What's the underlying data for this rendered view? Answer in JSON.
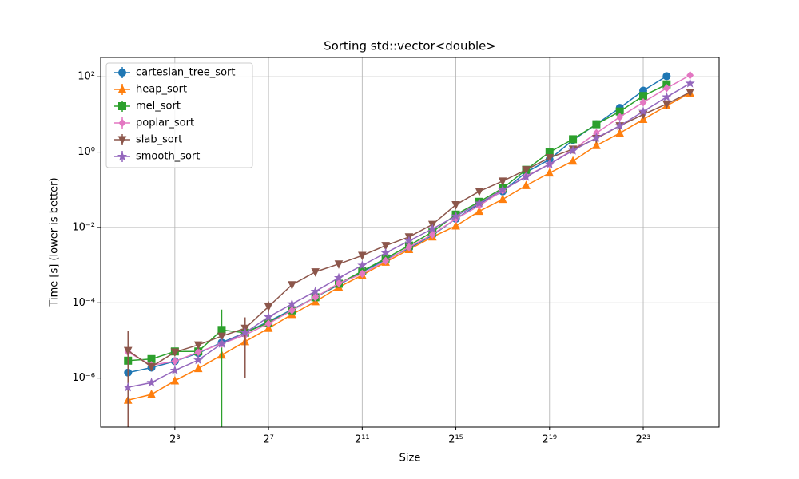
{
  "chart_data": {
    "type": "line",
    "title": "Sorting std::vector<double>",
    "x_label": "Size",
    "y_label": "Time [s] (lower is better)",
    "x_scale": "log",
    "y_scale": "log",
    "grid": true,
    "legend_position": "upper left",
    "xlim": [
      0.89,
      79300000
    ],
    "ylim": [
      5e-08,
      326
    ],
    "xticks": [
      {
        "value": 8,
        "label": "2³"
      },
      {
        "value": 128,
        "label": "2⁷"
      },
      {
        "value": 2048,
        "label": "2¹¹"
      },
      {
        "value": 32768,
        "label": "2¹⁵"
      },
      {
        "value": 524288,
        "label": "2¹⁹"
      },
      {
        "value": 8388608,
        "label": "2²³"
      }
    ],
    "yticks": [
      {
        "value": 1e-06,
        "label": "10⁻⁶"
      },
      {
        "value": 0.0001,
        "label": "10⁻⁴"
      },
      {
        "value": 0.01,
        "label": "10⁻²"
      },
      {
        "value": 1,
        "label": "10⁰"
      },
      {
        "value": 100,
        "label": "10²"
      }
    ],
    "x": [
      2,
      4,
      8,
      16,
      32,
      64,
      128,
      256,
      512,
      1024,
      2048,
      4096,
      8192,
      16384,
      32768,
      65536,
      131072,
      262144,
      524288,
      1048576,
      2097152,
      4194304,
      8388608,
      16777216,
      33554432
    ],
    "series": [
      {
        "name": "cartesian_tree_sort",
        "color": "#1f77b4",
        "marker": "circle",
        "values": [
          1.4e-06,
          1.9e-06,
          2.8e-06,
          4.6e-06,
          8.8e-06,
          1.6e-05,
          3.2e-05,
          6.6e-05,
          0.00014,
          0.0003,
          0.00066,
          0.0014,
          0.0028,
          0.0062,
          0.017,
          0.042,
          0.091,
          0.29,
          0.64,
          2.1,
          5.5,
          15,
          43,
          104,
          null
        ]
      },
      {
        "name": "heap_sort",
        "color": "#ff7f0e",
        "marker": "triangle-up",
        "values": [
          2.6e-07,
          3.7e-07,
          8.5e-07,
          1.8e-06,
          4.1e-06,
          9.3e-06,
          2.1e-05,
          4.9e-05,
          0.000107,
          0.00026,
          0.00054,
          0.0012,
          0.0026,
          0.0056,
          0.011,
          0.027,
          0.056,
          0.13,
          0.28,
          0.58,
          1.5,
          3.2,
          7.4,
          17,
          37
        ]
      },
      {
        "name": "mel_sort",
        "color": "#2ca02c",
        "marker": "square",
        "values": [
          2.9e-06,
          3.2e-06,
          5.1e-06,
          5.1e-06,
          1.9e-05,
          1.6e-05,
          3e-05,
          6.3e-05,
          0.00014,
          0.00032,
          0.00069,
          0.0015,
          0.0033,
          0.0076,
          0.022,
          0.048,
          0.11,
          0.34,
          1.0,
          2.2,
          5.5,
          12,
          31,
          63,
          null
        ],
        "errors": [
          null,
          null,
          null,
          null,
          4.7e-05,
          null,
          null,
          null,
          null,
          null,
          null,
          null,
          null,
          null,
          null,
          null,
          null,
          null,
          null,
          null,
          null,
          null,
          null,
          null,
          null
        ]
      },
      {
        "name": "poplar_sort",
        "color": "#e377c2",
        "marker": "diamond",
        "values": [
          4.9e-06,
          2.2e-06,
          2.8e-06,
          4.9e-06,
          8.2e-06,
          1.4e-05,
          2.8e-05,
          6.3e-05,
          0.00014,
          0.00033,
          0.00059,
          0.0013,
          0.003,
          0.0065,
          0.017,
          0.038,
          0.096,
          0.23,
          0.48,
          1.16,
          3.2,
          8.6,
          21,
          50,
          110
        ]
      },
      {
        "name": "slab_sort",
        "color": "#8c564b",
        "marker": "triangle-down",
        "values": [
          5.4e-06,
          2e-06,
          4.9e-06,
          7.6e-06,
          1.3e-05,
          2.1e-05,
          7.9e-05,
          0.0003,
          0.00066,
          0.00107,
          0.0018,
          0.0033,
          0.0056,
          0.012,
          0.04,
          0.091,
          0.17,
          0.34,
          0.71,
          1.2,
          2.3,
          5.0,
          10,
          19,
          39
        ],
        "errors": [
          1.3e-05,
          null,
          null,
          null,
          null,
          2e-05,
          3e-05,
          null,
          null,
          null,
          null,
          null,
          null,
          null,
          null,
          null,
          null,
          null,
          null,
          null,
          null,
          null,
          null,
          null,
          null
        ]
      },
      {
        "name": "smooth_sort",
        "color": "#9467bd",
        "marker": "star",
        "values": [
          5.7e-07,
          7.6e-07,
          1.6e-06,
          3e-06,
          8.2e-06,
          1.6e-05,
          4.2e-05,
          9.3e-05,
          0.0002,
          0.00046,
          0.00098,
          0.0021,
          0.0044,
          0.0092,
          0.02,
          0.044,
          0.1,
          0.22,
          0.48,
          1.1,
          2.4,
          5.0,
          12,
          29,
          67
        ]
      }
    ]
  }
}
